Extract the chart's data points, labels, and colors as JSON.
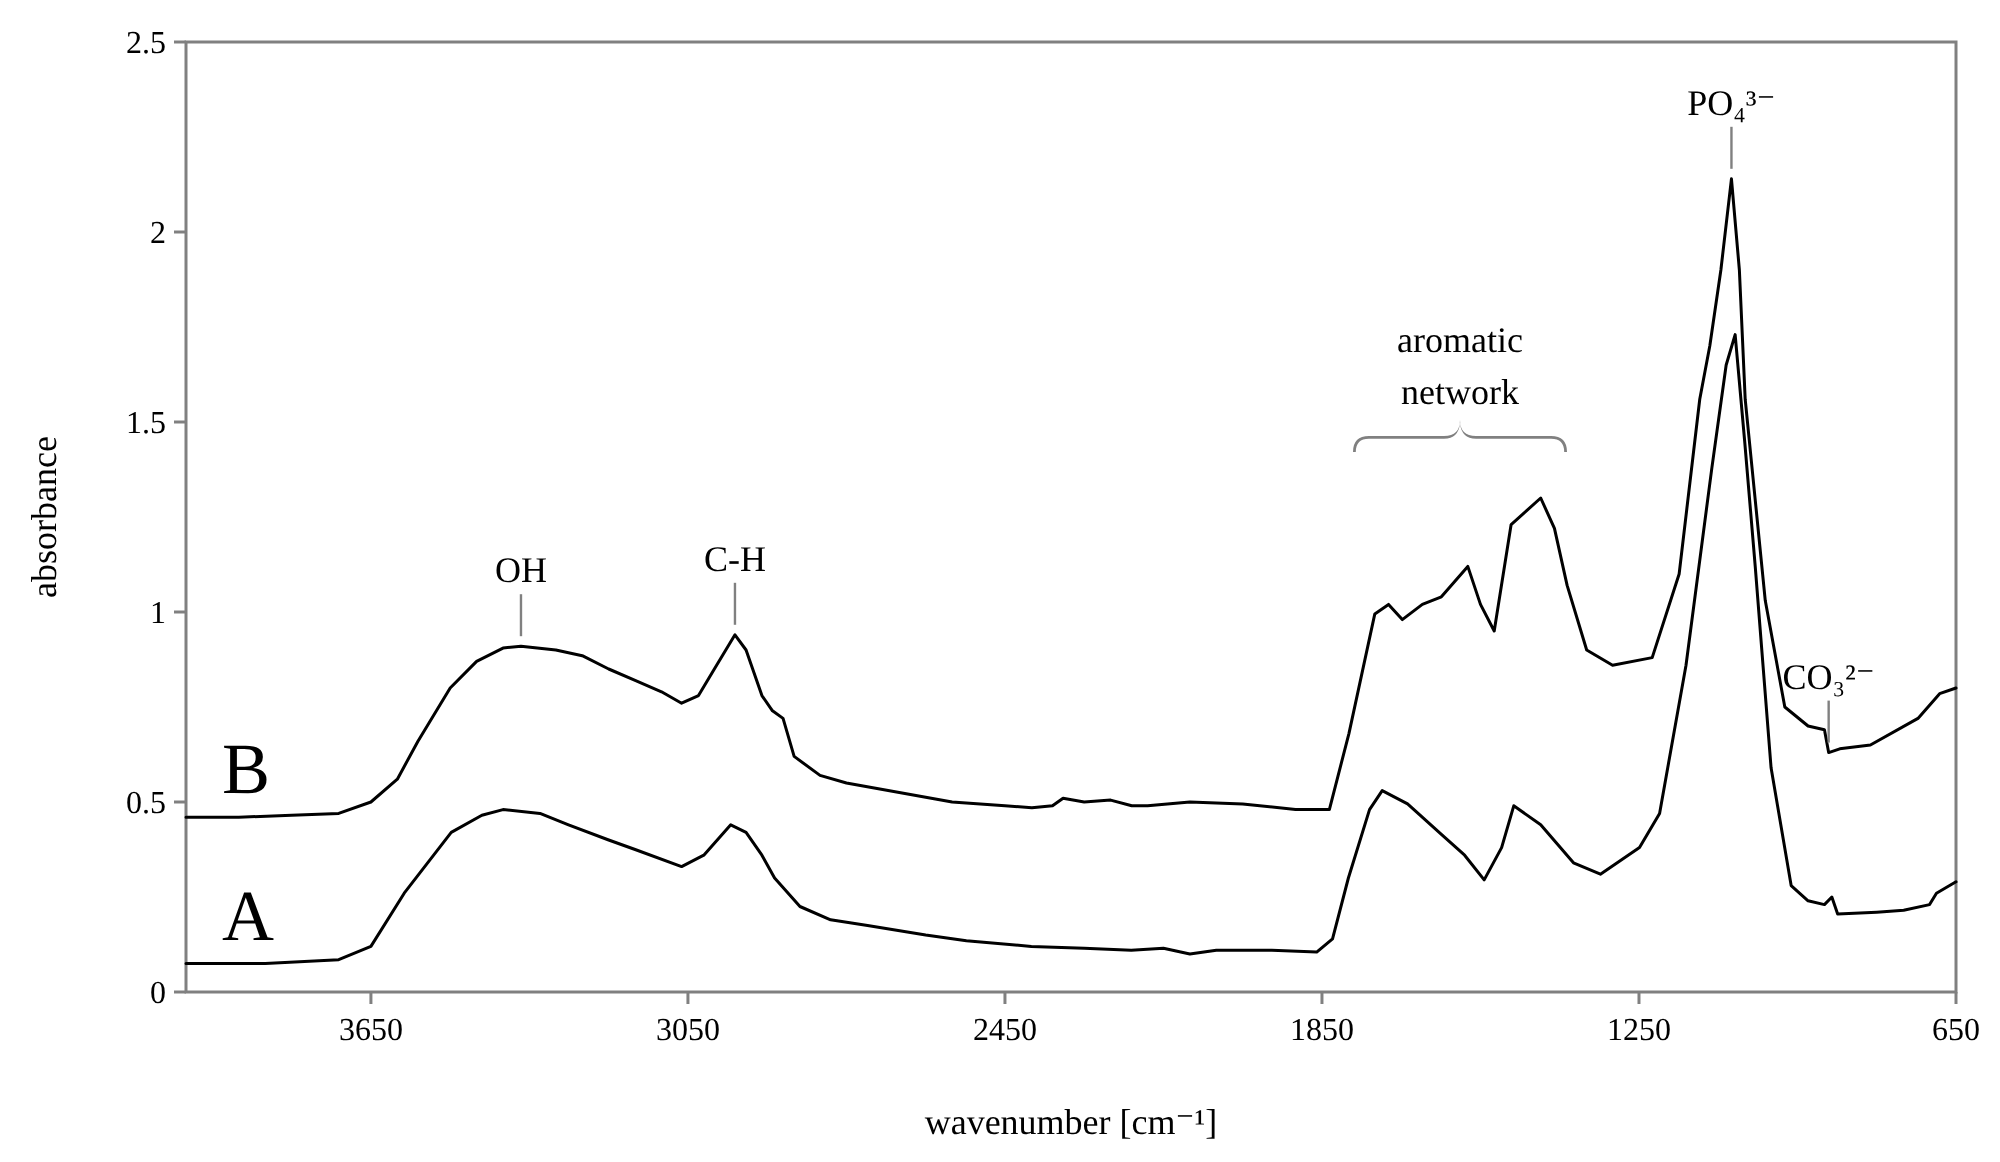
{
  "chart_data": {
    "type": "line",
    "xlabel": "wavenumber [cm⁻¹]",
    "ylabel": "absorbance",
    "xlim": [
      4000,
      650
    ],
    "xticks": [
      3650,
      3050,
      2450,
      1850,
      1250,
      650
    ],
    "ylim": [
      0,
      2.5
    ],
    "yticks": [
      0,
      0.5,
      1,
      1.5,
      2,
      2.5
    ],
    "grid": false,
    "legend": false,
    "marker": "none",
    "line_style": "solid",
    "series": [
      {
        "name": "B",
        "color": "#000000",
        "x": [
          4000,
          3900,
          3800,
          3711,
          3650,
          3600,
          3561,
          3500,
          3450,
          3400,
          3366,
          3300,
          3250,
          3200,
          3150,
          3100,
          3062,
          3030,
          3000,
          2961,
          2940,
          2910,
          2890,
          2870,
          2849,
          2800,
          2750,
          2650,
          2550,
          2450,
          2399,
          2360,
          2340,
          2300,
          2250,
          2210,
          2180,
          2100,
          2000,
          1900,
          1836,
          1799,
          1750,
          1724,
          1698,
          1660,
          1624,
          1574,
          1550,
          1524,
          1492,
          1436,
          1410,
          1386,
          1349,
          1300,
          1225,
          1174,
          1135,
          1116,
          1095,
          1075,
          1060,
          1049,
          1011,
          974,
          930,
          899,
          891,
          870,
          812,
          722,
          681,
          650
        ],
        "values": [
          0.46,
          0.46,
          0.465,
          0.47,
          0.5,
          0.56,
          0.66,
          0.8,
          0.87,
          0.905,
          0.91,
          0.9,
          0.885,
          0.85,
          0.82,
          0.79,
          0.76,
          0.78,
          0.85,
          0.94,
          0.9,
          0.78,
          0.74,
          0.72,
          0.62,
          0.57,
          0.55,
          0.525,
          0.5,
          0.49,
          0.485,
          0.49,
          0.51,
          0.5,
          0.505,
          0.49,
          0.49,
          0.5,
          0.495,
          0.48,
          0.48,
          0.68,
          0.995,
          1.02,
          0.98,
          1.02,
          1.04,
          1.12,
          1.02,
          0.95,
          1.23,
          1.3,
          1.22,
          1.07,
          0.9,
          0.86,
          0.88,
          1.1,
          1.56,
          1.7,
          1.9,
          2.14,
          1.9,
          1.56,
          1.03,
          0.75,
          0.7,
          0.69,
          0.63,
          0.64,
          0.65,
          0.72,
          0.785,
          0.8
        ]
      },
      {
        "name": "A",
        "color": "#000000",
        "x": [
          4000,
          3850,
          3711,
          3650,
          3587,
          3498,
          3440,
          3400,
          3330,
          3276,
          3200,
          3150,
          3062,
          3020,
          2969,
          2940,
          2910,
          2886,
          2838,
          2780,
          2710,
          2600,
          2523,
          2400,
          2300,
          2211,
          2150,
          2100,
          2050,
          1945,
          1860,
          1830,
          1800,
          1760,
          1736,
          1688,
          1624,
          1580,
          1543,
          1510,
          1487,
          1436,
          1374,
          1323,
          1249,
          1211,
          1161,
          1112,
          1085,
          1068,
          1050,
          1030,
          1000,
          962,
          930,
          899,
          885,
          874,
          800,
          749,
          700,
          687,
          650
        ],
        "values": [
          0.075,
          0.075,
          0.085,
          0.12,
          0.26,
          0.42,
          0.465,
          0.48,
          0.47,
          0.44,
          0.4,
          0.375,
          0.33,
          0.36,
          0.44,
          0.42,
          0.36,
          0.3,
          0.225,
          0.19,
          0.175,
          0.15,
          0.135,
          0.12,
          0.115,
          0.11,
          0.115,
          0.1,
          0.11,
          0.11,
          0.105,
          0.14,
          0.3,
          0.48,
          0.53,
          0.495,
          0.415,
          0.36,
          0.295,
          0.38,
          0.49,
          0.44,
          0.34,
          0.31,
          0.38,
          0.47,
          0.86,
          1.38,
          1.65,
          1.73,
          1.45,
          1.12,
          0.59,
          0.28,
          0.24,
          0.23,
          0.25,
          0.205,
          0.21,
          0.215,
          0.23,
          0.26,
          0.29
        ]
      }
    ],
    "annotations": [
      {
        "text": "OH",
        "x": 3366,
        "y": 0.91
      },
      {
        "text": "C-H",
        "x": 2961,
        "y": 0.94
      },
      "aromatic network",
      {
        "text": "PO₄³⁻",
        "x": 1075,
        "y": 2.14
      },
      {
        "text": "CO₃²⁻",
        "x": 891,
        "y": 0.63
      }
    ]
  }
}
